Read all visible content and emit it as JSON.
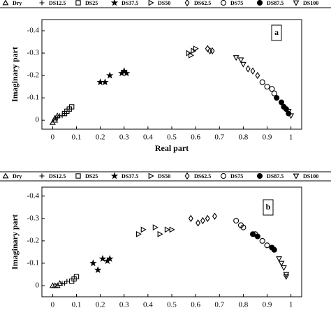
{
  "chart_data": [
    {
      "type": "scatter",
      "annotation": "a",
      "xlabel": "Real part",
      "ylabel": "Imaginary part",
      "xlim": [
        -0.045,
        1.045
      ],
      "ylim": [
        0.04,
        -0.45
      ],
      "xticks": [
        0,
        0.1,
        0.2,
        0.3,
        0.4,
        0.5,
        0.6,
        0.7,
        0.8,
        0.9,
        1
      ],
      "yticks": [
        -0.4,
        -0.3,
        -0.2,
        -0.1,
        0
      ],
      "series": [
        {
          "name": "Dry",
          "color": "#000000",
          "marker": "triangle-up",
          "x": [
            0.0,
            0.01,
            0.01,
            0.02
          ],
          "y": [
            0.01,
            -0.01,
            0.0,
            -0.02
          ]
        },
        {
          "name": "DS12.5",
          "color": "#000000",
          "marker": "plus",
          "x": [
            0.02,
            0.03,
            0.04,
            0.05
          ],
          "y": [
            -0.01,
            -0.02,
            -0.02,
            -0.03
          ]
        },
        {
          "name": "DS25",
          "color": "#000000",
          "marker": "square",
          "x": [
            0.05,
            0.06,
            0.07,
            0.08
          ],
          "y": [
            -0.03,
            -0.04,
            -0.05,
            -0.06
          ]
        },
        {
          "name": "DS37.5",
          "color": "#000000",
          "marker": "star",
          "x": [
            0.2,
            0.22,
            0.24,
            0.29,
            0.3,
            0.31
          ],
          "y": [
            -0.17,
            -0.17,
            -0.2,
            -0.21,
            -0.22,
            -0.21
          ]
        },
        {
          "name": "DS50",
          "color": "#000000",
          "marker": "triangle-right",
          "x": [
            0.57,
            0.58,
            0.59,
            0.6
          ],
          "y": [
            -0.3,
            -0.29,
            -0.31,
            -0.32
          ]
        },
        {
          "name": "DS62.5",
          "color": "#000000",
          "marker": "diamond",
          "x": [
            0.65,
            0.66,
            0.67,
            0.82,
            0.84,
            0.86
          ],
          "y": [
            -0.32,
            -0.31,
            -0.31,
            -0.23,
            -0.22,
            -0.2
          ]
        },
        {
          "name": "DS75",
          "color": "#000000",
          "marker": "circle",
          "x": [
            0.88,
            0.9,
            0.92,
            0.93
          ],
          "y": [
            -0.17,
            -0.15,
            -0.14,
            -0.12
          ]
        },
        {
          "name": "DS87.5",
          "color": "#000000",
          "marker": "filled-circle",
          "x": [
            0.94,
            0.96,
            0.97,
            0.98,
            0.99
          ],
          "y": [
            -0.1,
            -0.08,
            -0.06,
            -0.05,
            -0.03
          ]
        },
        {
          "name": "DS100",
          "color": "#000000",
          "marker": "triangle-down",
          "x": [
            0.77,
            0.79,
            0.8,
            0.99,
            1.0
          ],
          "y": [
            -0.28,
            -0.27,
            -0.25,
            -0.04,
            -0.02
          ]
        }
      ]
    },
    {
      "type": "scatter",
      "annotation": "b",
      "ylabel": "Imaginary part",
      "xlim": [
        -0.045,
        1.045
      ],
      "ylim": [
        0.05,
        -0.44
      ],
      "xticks": [
        0,
        0.1,
        0.2,
        0.3,
        0.4,
        0.5,
        0.6,
        0.7,
        0.8,
        0.9,
        1
      ],
      "yticks": [
        -0.4,
        -0.3,
        -0.2,
        -0.1,
        0
      ],
      "series": [
        {
          "name": "Dry",
          "color": "#000000",
          "marker": "triangle-up",
          "x": [
            0.0,
            0.01,
            0.02,
            0.03
          ],
          "y": [
            0.0,
            0.0,
            0.0,
            -0.01
          ]
        },
        {
          "name": "DS12.5",
          "color": "#000000",
          "marker": "plus",
          "x": [
            0.04,
            0.05,
            0.06
          ],
          "y": [
            -0.01,
            -0.01,
            -0.02
          ]
        },
        {
          "name": "DS25",
          "color": "#000000",
          "marker": "square",
          "x": [
            0.08,
            0.09,
            0.1
          ],
          "y": [
            -0.02,
            -0.03,
            -0.04
          ]
        },
        {
          "name": "DS37.5",
          "color": "#000000",
          "marker": "star",
          "x": [
            0.17,
            0.19,
            0.21,
            0.23,
            0.24
          ],
          "y": [
            -0.1,
            -0.07,
            -0.12,
            -0.11,
            -0.12
          ]
        },
        {
          "name": "DS50",
          "color": "#000000",
          "marker": "triangle-right",
          "x": [
            0.36,
            0.38,
            0.43,
            0.45,
            0.48,
            0.5
          ],
          "y": [
            -0.23,
            -0.25,
            -0.26,
            -0.23,
            -0.25,
            -0.25
          ]
        },
        {
          "name": "DS62.5",
          "color": "#000000",
          "marker": "diamond",
          "x": [
            0.58,
            0.61,
            0.63,
            0.65,
            0.68
          ],
          "y": [
            -0.3,
            -0.28,
            -0.29,
            -0.3,
            -0.31
          ]
        },
        {
          "name": "DS75",
          "color": "#000000",
          "marker": "circle",
          "x": [
            0.77,
            0.79,
            0.8,
            0.85,
            0.88,
            0.9
          ],
          "y": [
            -0.29,
            -0.27,
            -0.26,
            -0.23,
            -0.2,
            -0.18
          ]
        },
        {
          "name": "DS87.5",
          "color": "#000000",
          "marker": "filled-circle",
          "x": [
            0.84,
            0.86,
            0.92,
            0.93
          ],
          "y": [
            -0.23,
            -0.22,
            -0.17,
            -0.16
          ]
        },
        {
          "name": "DS100",
          "color": "#000000",
          "marker": "triangle-down",
          "x": [
            0.95,
            0.96,
            0.97,
            0.98,
            0.98
          ],
          "y": [
            -0.12,
            -0.1,
            -0.08,
            -0.05,
            -0.04
          ]
        }
      ]
    }
  ]
}
